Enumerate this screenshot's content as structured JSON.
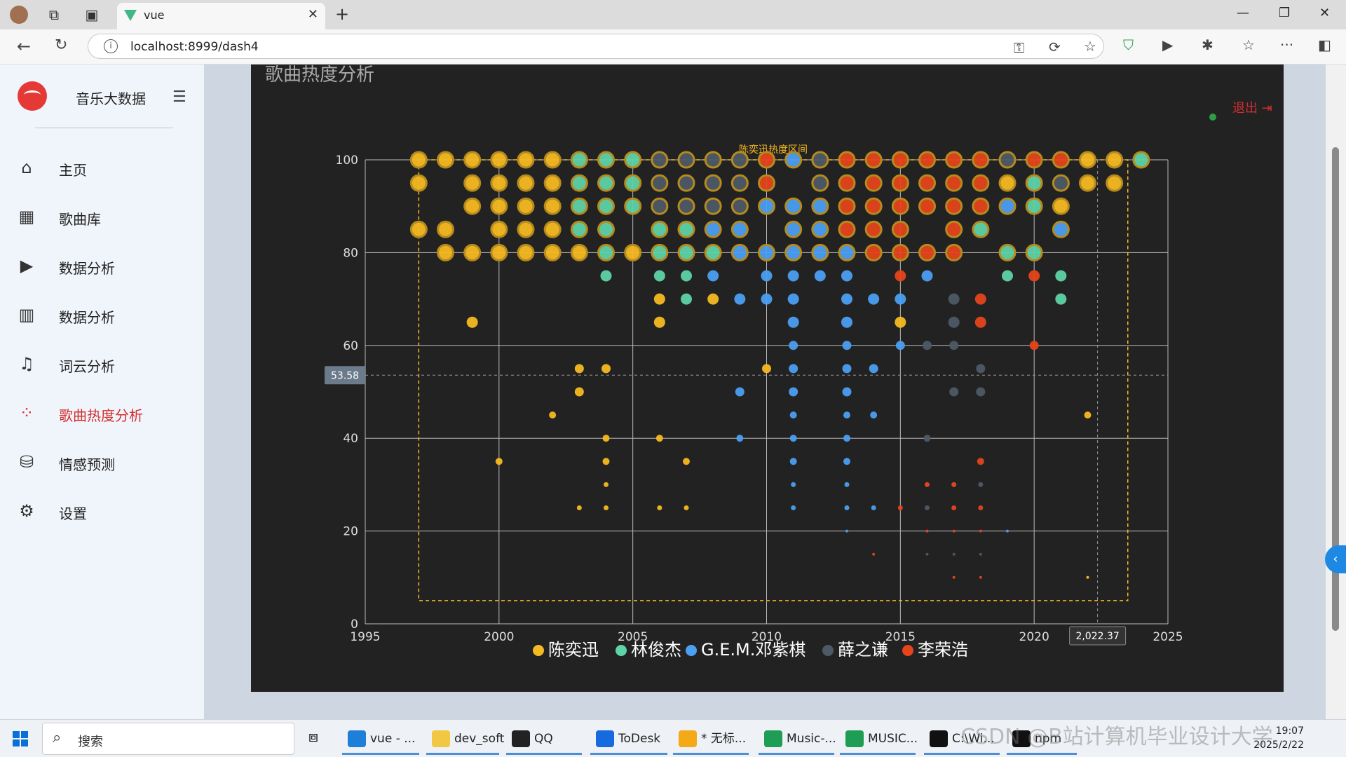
{
  "browser": {
    "tab_title": "vue",
    "url": "localhost:8999/dash4"
  },
  "sidebar": {
    "brand": "音乐大数据",
    "items": [
      {
        "label": "主页",
        "icon": "home-icon",
        "active": false
      },
      {
        "label": "歌曲库",
        "icon": "grid-icon",
        "active": false
      },
      {
        "label": "数据分析",
        "icon": "play-circle-icon",
        "active": false
      },
      {
        "label": "数据分析",
        "icon": "bar-chart-icon",
        "active": false
      },
      {
        "label": "词云分析",
        "icon": "music-list-icon",
        "active": false
      },
      {
        "label": "歌曲热度分析",
        "icon": "scatter-icon",
        "active": true
      },
      {
        "label": "情感预测",
        "icon": "data-search-icon",
        "active": false
      },
      {
        "label": "设置",
        "icon": "gear-icon",
        "active": false
      }
    ]
  },
  "page": {
    "title": "歌曲热度分析",
    "logout": "退出"
  },
  "chart_data": {
    "type": "scatter",
    "x_ticks": [
      "1995",
      "2000",
      "2005",
      "2010",
      "2015",
      "2020",
      "2025"
    ],
    "y_ticks": [
      "0",
      "20",
      "40",
      "60",
      "80",
      "100"
    ],
    "xlim": [
      1995,
      2025
    ],
    "ylim": [
      0,
      100
    ],
    "grid": true,
    "legend_position": "bottom",
    "markArea_label": "陈奕迅热度区间",
    "markArea": {
      "x": [
        1997,
        2023.5
      ],
      "y": [
        5,
        100
      ]
    },
    "crosshair": {
      "x": "2,022.37",
      "y": "53.58"
    },
    "colors": {
      "陈奕迅": "#f5b922",
      "林俊杰": "#5fd3a8",
      "G.E.M.邓紫棋": "#4c9ff2",
      "薛之谦": "#4d5a66",
      "李荣浩": "#e5441c"
    },
    "series": [
      {
        "name": "陈奕迅",
        "color": "#f5b922",
        "points": [
          [
            1997,
            100
          ],
          [
            1998,
            100
          ],
          [
            1999,
            100
          ],
          [
            2000,
            100
          ],
          [
            2001,
            100
          ],
          [
            2002,
            100
          ],
          [
            1997,
            95
          ],
          [
            1999,
            95
          ],
          [
            2000,
            95
          ],
          [
            2001,
            95
          ],
          [
            2002,
            95
          ],
          [
            1999,
            90
          ],
          [
            2000,
            90
          ],
          [
            2001,
            90
          ],
          [
            2002,
            90
          ],
          [
            1997,
            85
          ],
          [
            1998,
            85
          ],
          [
            2000,
            85
          ],
          [
            2001,
            85
          ],
          [
            2002,
            85
          ],
          [
            1998,
            80
          ],
          [
            1999,
            80
          ],
          [
            2000,
            80
          ],
          [
            2001,
            80
          ],
          [
            2002,
            80
          ],
          [
            2003,
            80
          ],
          [
            2005,
            80
          ],
          [
            1999,
            65
          ],
          [
            2003,
            55
          ],
          [
            2004,
            55
          ],
          [
            2003,
            50
          ],
          [
            2002,
            45
          ],
          [
            2004,
            40
          ],
          [
            2000,
            35
          ],
          [
            2004,
            35
          ],
          [
            2004,
            30
          ],
          [
            2003,
            25
          ],
          [
            2004,
            25
          ],
          [
            2006,
            65
          ],
          [
            2006,
            40
          ],
          [
            2007,
            35
          ],
          [
            2006,
            25
          ],
          [
            2007,
            25
          ],
          [
            2006,
            70
          ],
          [
            2008,
            70
          ],
          [
            2010,
            55
          ],
          [
            2015,
            65
          ],
          [
            2021,
            90
          ],
          [
            2022,
            100
          ],
          [
            2023,
            100
          ],
          [
            2019,
            95
          ],
          [
            2022,
            95
          ],
          [
            2023,
            95
          ],
          [
            2022,
            45
          ],
          [
            2022,
            10
          ]
        ]
      },
      {
        "name": "林俊杰",
        "color": "#5fd3a8",
        "points": [
          [
            2003,
            100
          ],
          [
            2004,
            100
          ],
          [
            2005,
            100
          ],
          [
            2003,
            95
          ],
          [
            2004,
            95
          ],
          [
            2005,
            95
          ],
          [
            2003,
            90
          ],
          [
            2004,
            90
          ],
          [
            2005,
            90
          ],
          [
            2003,
            85
          ],
          [
            2004,
            85
          ],
          [
            2006,
            85
          ],
          [
            2007,
            85
          ],
          [
            2018,
            85
          ],
          [
            2004,
            80
          ],
          [
            2006,
            80
          ],
          [
            2007,
            80
          ],
          [
            2008,
            80
          ],
          [
            2004,
            75
          ],
          [
            2006,
            75
          ],
          [
            2007,
            75
          ],
          [
            2007,
            70
          ],
          [
            2019,
            80
          ],
          [
            2020,
            80
          ],
          [
            2019,
            75
          ],
          [
            2021,
            75
          ],
          [
            2021,
            70
          ],
          [
            2024,
            100
          ],
          [
            2020,
            90
          ],
          [
            2020,
            95
          ]
        ]
      },
      {
        "name": "G.E.M.邓紫棋",
        "color": "#4c9ff2",
        "points": [
          [
            2011,
            100
          ],
          [
            2010,
            90
          ],
          [
            2011,
            90
          ],
          [
            2012,
            90
          ],
          [
            2008,
            85
          ],
          [
            2009,
            85
          ],
          [
            2011,
            85
          ],
          [
            2012,
            85
          ],
          [
            2009,
            80
          ],
          [
            2010,
            80
          ],
          [
            2011,
            80
          ],
          [
            2012,
            80
          ],
          [
            2013,
            80
          ],
          [
            2008,
            75
          ],
          [
            2010,
            75
          ],
          [
            2011,
            75
          ],
          [
            2012,
            75
          ],
          [
            2013,
            75
          ],
          [
            2009,
            70
          ],
          [
            2010,
            70
          ],
          [
            2011,
            70
          ],
          [
            2013,
            70
          ],
          [
            2014,
            70
          ],
          [
            2015,
            70
          ],
          [
            2011,
            65
          ],
          [
            2013,
            65
          ],
          [
            2011,
            60
          ],
          [
            2013,
            60
          ],
          [
            2015,
            60
          ],
          [
            2011,
            55
          ],
          [
            2013,
            55
          ],
          [
            2014,
            55
          ],
          [
            2009,
            50
          ],
          [
            2011,
            50
          ],
          [
            2013,
            50
          ],
          [
            2011,
            45
          ],
          [
            2013,
            45
          ],
          [
            2014,
            45
          ],
          [
            2009,
            40
          ],
          [
            2011,
            40
          ],
          [
            2013,
            40
          ],
          [
            2011,
            35
          ],
          [
            2013,
            35
          ],
          [
            2011,
            30
          ],
          [
            2013,
            30
          ],
          [
            2011,
            25
          ],
          [
            2013,
            25
          ],
          [
            2014,
            25
          ],
          [
            2013,
            20
          ],
          [
            2016,
            75
          ],
          [
            2019,
            90
          ],
          [
            2021,
            85
          ],
          [
            2019,
            20
          ]
        ]
      },
      {
        "name": "薛之谦",
        "color": "#4d5a66",
        "points": [
          [
            2006,
            100
          ],
          [
            2007,
            100
          ],
          [
            2008,
            100
          ],
          [
            2009,
            100
          ],
          [
            2012,
            100
          ],
          [
            2019,
            100
          ],
          [
            2006,
            95
          ],
          [
            2007,
            95
          ],
          [
            2008,
            95
          ],
          [
            2009,
            95
          ],
          [
            2012,
            95
          ],
          [
            2006,
            90
          ],
          [
            2007,
            90
          ],
          [
            2008,
            90
          ],
          [
            2009,
            90
          ],
          [
            2021,
            95
          ],
          [
            2017,
            70
          ],
          [
            2017,
            65
          ],
          [
            2016,
            60
          ],
          [
            2017,
            60
          ],
          [
            2018,
            55
          ],
          [
            2017,
            50
          ],
          [
            2018,
            50
          ],
          [
            2016,
            40
          ],
          [
            2016,
            30
          ],
          [
            2017,
            30
          ],
          [
            2018,
            30
          ],
          [
            2016,
            25
          ],
          [
            2016,
            20
          ],
          [
            2016,
            15
          ],
          [
            2017,
            15
          ],
          [
            2018,
            15
          ]
        ]
      },
      {
        "name": "李荣浩",
        "color": "#e5441c",
        "points": [
          [
            2010,
            100
          ],
          [
            2013,
            100
          ],
          [
            2014,
            100
          ],
          [
            2015,
            100
          ],
          [
            2016,
            100
          ],
          [
            2017,
            100
          ],
          [
            2018,
            100
          ],
          [
            2020,
            100
          ],
          [
            2021,
            100
          ],
          [
            2010,
            95
          ],
          [
            2013,
            95
          ],
          [
            2014,
            95
          ],
          [
            2015,
            95
          ],
          [
            2016,
            95
          ],
          [
            2017,
            95
          ],
          [
            2018,
            95
          ],
          [
            2013,
            90
          ],
          [
            2014,
            90
          ],
          [
            2015,
            90
          ],
          [
            2016,
            90
          ],
          [
            2017,
            90
          ],
          [
            2018,
            90
          ],
          [
            2013,
            85
          ],
          [
            2014,
            85
          ],
          [
            2015,
            85
          ],
          [
            2017,
            85
          ],
          [
            2014,
            80
          ],
          [
            2015,
            80
          ],
          [
            2016,
            80
          ],
          [
            2017,
            80
          ],
          [
            2015,
            75
          ],
          [
            2020,
            75
          ],
          [
            2018,
            70
          ],
          [
            2018,
            65
          ],
          [
            2020,
            60
          ],
          [
            2018,
            35
          ],
          [
            2016,
            30
          ],
          [
            2017,
            30
          ],
          [
            2015,
            25
          ],
          [
            2017,
            25
          ],
          [
            2018,
            25
          ],
          [
            2017,
            20
          ],
          [
            2018,
            20
          ],
          [
            2016,
            20
          ],
          [
            2014,
            15
          ],
          [
            2017,
            10
          ],
          [
            2018,
            10
          ]
        ]
      }
    ]
  },
  "taskbar": {
    "search": "搜索",
    "apps": [
      {
        "label": "vue - ...",
        "color": "#1e7fd8"
      },
      {
        "label": "dev_soft",
        "color": "#f2c744"
      },
      {
        "label": "QQ",
        "color": "#222222"
      },
      {
        "label": "ToDesk",
        "color": "#1769e0"
      },
      {
        "label": "* 无标...",
        "color": "#f4a917"
      },
      {
        "label": "Music-...",
        "color": "#1f9d55"
      },
      {
        "label": "MUSIC...",
        "color": "#1f9d55"
      },
      {
        "label": "C:\\Wi...",
        "color": "#111111"
      },
      {
        "label": "npm",
        "color": "#111111"
      }
    ],
    "time": "19:07",
    "date": "2025/2/22"
  },
  "watermark": "CSDN @B站计算机毕业设计大学"
}
